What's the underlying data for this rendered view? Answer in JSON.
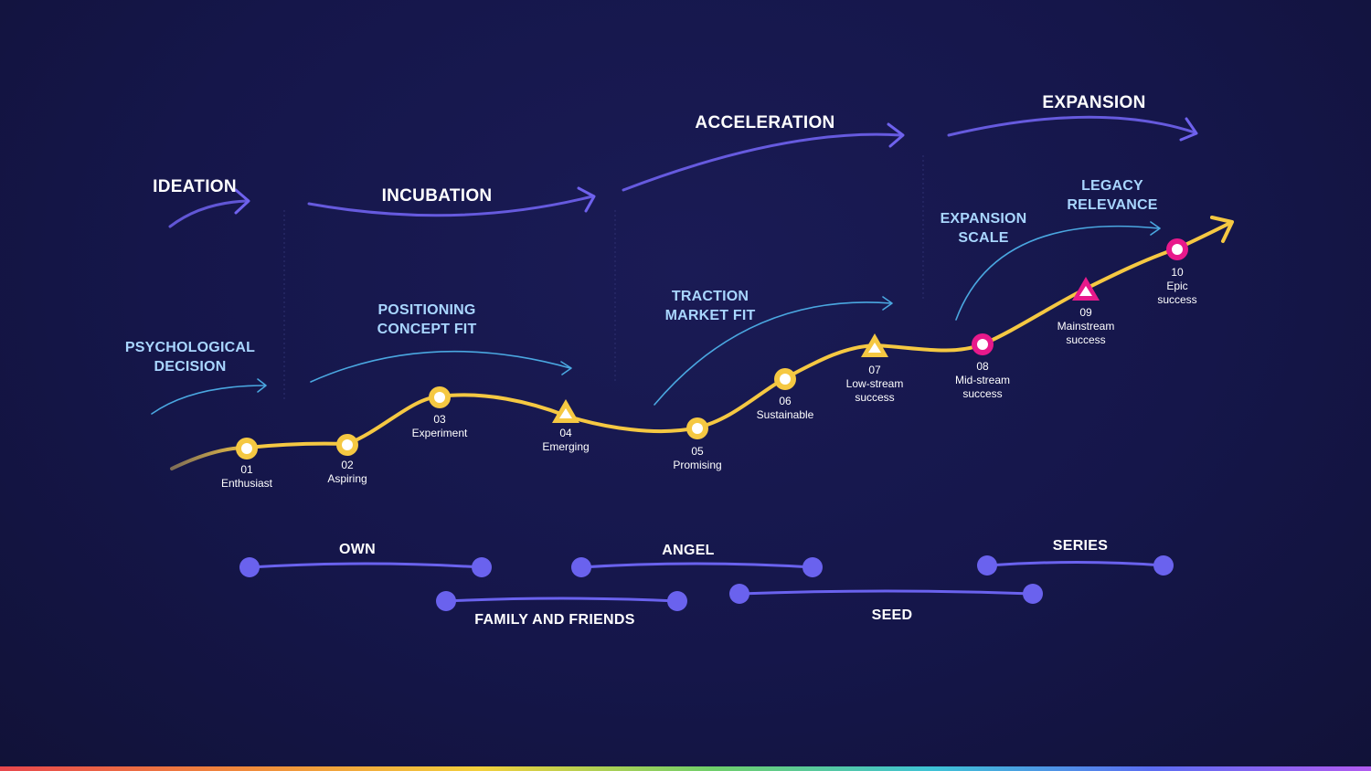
{
  "phases": {
    "ideation": "IDEATION",
    "incubation": "INCUBATION",
    "acceleration": "ACCELERATION",
    "expansion": "EXPANSION"
  },
  "sub_phases": {
    "psychological_decision": [
      "PSYCHOLOGICAL",
      "DECISION"
    ],
    "positioning_concept_fit": [
      "POSITIONING",
      "CONCEPT FIT"
    ],
    "traction_market_fit": [
      "TRACTION",
      "MARKET FIT"
    ],
    "expansion_scale": [
      "EXPANSION",
      "SCALE"
    ],
    "legacy_relevance": [
      "LEGACY",
      "RELEVANCE"
    ]
  },
  "stages": [
    {
      "num": "01",
      "lines": [
        "Enthusiast"
      ],
      "marker": "circle",
      "color": "#f5c842"
    },
    {
      "num": "02",
      "lines": [
        "Aspiring"
      ],
      "marker": "circle",
      "color": "#f5c842"
    },
    {
      "num": "03",
      "lines": [
        "Experiment"
      ],
      "marker": "circle",
      "color": "#f5c842"
    },
    {
      "num": "04",
      "lines": [
        "Emerging"
      ],
      "marker": "triangle",
      "color": "#f5c842"
    },
    {
      "num": "05",
      "lines": [
        "Promising"
      ],
      "marker": "circle",
      "color": "#f5c842"
    },
    {
      "num": "06",
      "lines": [
        "Sustainable"
      ],
      "marker": "circle",
      "color": "#f5c842"
    },
    {
      "num": "07",
      "lines": [
        "Low-stream",
        "success"
      ],
      "marker": "triangle",
      "color": "#f5c842"
    },
    {
      "num": "08",
      "lines": [
        "Mid-stream",
        "success"
      ],
      "marker": "circle",
      "color": "#e8198b"
    },
    {
      "num": "09",
      "lines": [
        "Mainstream",
        "success"
      ],
      "marker": "triangle",
      "color": "#e8198b"
    },
    {
      "num": "10",
      "lines": [
        "Epic",
        "success"
      ],
      "marker": "circle",
      "color": "#e8198b"
    }
  ],
  "funding": {
    "own": "OWN",
    "family_and_friends": "FAMILY AND FRIENDS",
    "angel": "ANGEL",
    "seed": "SEED",
    "series": "SERIES"
  },
  "colors": {
    "background": "#15164a",
    "curve": "#f5c842",
    "phase_arrow": "#6f62ee",
    "sub_arrow": "#4aa7e0",
    "funding_bar": "#6a62ee",
    "milestone_early": "#f5c842",
    "milestone_late": "#e8198b"
  }
}
